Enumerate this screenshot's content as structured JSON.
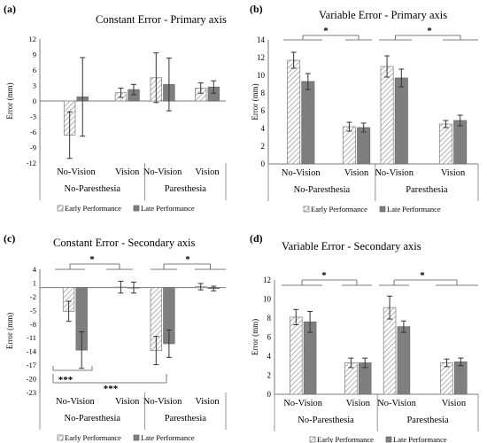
{
  "panels": [
    {
      "letter": "(a)",
      "title": "Constant Error - Primary axis",
      "ylabel": "Error (mm)",
      "ylim": [
        -12,
        12
      ],
      "yticks": [
        12,
        9,
        6,
        3,
        0,
        -3,
        -6,
        -9,
        -12
      ],
      "groups": [
        "No-Vision",
        "Vision",
        "No-Vision",
        "Vision"
      ],
      "outer_groups": [
        "No-Paresthesia",
        "Paresthesia"
      ],
      "legend": [
        "Early Performance",
        "Late Performance"
      ],
      "significance": []
    },
    {
      "letter": "(b)",
      "title": "Variable Error - Primary axis",
      "ylabel": "Error (mm)",
      "ylim": [
        0,
        14
      ],
      "yticks": [
        14,
        12,
        10,
        8,
        6,
        4,
        2,
        0
      ],
      "groups": [
        "No-Vision",
        "Vision",
        "No-Vision",
        "Vision"
      ],
      "outer_groups": [
        "No-Paresthesia",
        "Paresthesia"
      ],
      "legend": [
        "Early Performance",
        "Late Performance"
      ],
      "significance": [
        "*",
        "*"
      ]
    },
    {
      "letter": "(c)",
      "title": "Constant Error - Secondary axis",
      "ylabel": "Error (mm)",
      "ylim": [
        -23,
        4
      ],
      "yticks": [
        4,
        1,
        -2,
        -5,
        -8,
        -11,
        -14,
        -17,
        -20,
        -23
      ],
      "groups": [
        "No-Vision",
        "Vision",
        "No-Vision",
        "Vision"
      ],
      "outer_groups": [
        "No-Paresthesia",
        "Paresthesia"
      ],
      "legend": [
        "Early Performance",
        "Late Performance"
      ],
      "significance": [
        "*",
        "*",
        "***",
        "***"
      ]
    },
    {
      "letter": "(d)",
      "title": "Variable Error - Secondary axis",
      "ylabel": "Error (mm)",
      "ylim": [
        0,
        12
      ],
      "yticks": [
        12,
        10,
        8,
        6,
        4,
        2,
        0
      ],
      "groups": [
        "No-Vision",
        "Vision",
        "No-Vision",
        "Vision"
      ],
      "outer_groups": [
        "No-Paresthesia",
        "Paresthesia"
      ],
      "legend": [
        "Early Performance",
        "Late Performance"
      ],
      "significance": [
        "*",
        "*"
      ]
    }
  ],
  "chart_data": [
    {
      "type": "bar",
      "title": "Constant Error - Primary axis",
      "xlabel": "",
      "ylabel": "Error (mm)",
      "ylim": [
        -12,
        12
      ],
      "categories": [
        "No-Paresthesia No-Vision",
        "No-Paresthesia Vision",
        "Paresthesia No-Vision",
        "Paresthesia Vision"
      ],
      "series": [
        {
          "name": "Early Performance",
          "values": [
            -6.6,
            1.6,
            4.5,
            2.5
          ],
          "errors": [
            4.5,
            0.9,
            4.8,
            1.0
          ]
        },
        {
          "name": "Late Performance",
          "values": [
            0.8,
            2.2,
            3.2,
            2.7
          ],
          "errors": [
            7.6,
            1.0,
            5.1,
            1.2
          ]
        }
      ],
      "grid": false,
      "legend_position": "bottom"
    },
    {
      "type": "bar",
      "title": "Variable Error - Primary axis",
      "xlabel": "",
      "ylabel": "Error (mm)",
      "ylim": [
        0,
        14
      ],
      "categories": [
        "No-Paresthesia No-Vision",
        "No-Paresthesia Vision",
        "Paresthesia No-Vision",
        "Paresthesia Vision"
      ],
      "series": [
        {
          "name": "Early Performance",
          "values": [
            11.7,
            4.2,
            11.0,
            4.5
          ],
          "errors": [
            0.9,
            0.5,
            1.2,
            0.4
          ]
        },
        {
          "name": "Late Performance",
          "values": [
            9.3,
            4.1,
            9.7,
            4.9
          ],
          "errors": [
            0.9,
            0.5,
            1.0,
            0.6
          ]
        }
      ],
      "grid": false,
      "legend_position": "bottom"
    },
    {
      "type": "bar",
      "title": "Constant Error - Secondary axis",
      "xlabel": "",
      "ylabel": "Error (mm)",
      "ylim": [
        -23,
        4
      ],
      "categories": [
        "No-Paresthesia No-Vision",
        "No-Paresthesia Vision",
        "Paresthesia No-Vision",
        "Paresthesia Vision"
      ],
      "series": [
        {
          "name": "Early Performance",
          "values": [
            -5.2,
            0.1,
            -13.8,
            0.2
          ],
          "errors": [
            2.2,
            1.3,
            3.1,
            0.7
          ]
        },
        {
          "name": "Late Performance",
          "values": [
            -13.7,
            0.0,
            -12.3,
            -0.2
          ],
          "errors": [
            4.0,
            1.2,
            3.0,
            0.5
          ]
        }
      ],
      "grid": false,
      "legend_position": "bottom"
    },
    {
      "type": "bar",
      "title": "Variable Error - Secondary axis",
      "xlabel": "",
      "ylabel": "Error (mm)",
      "ylim": [
        0,
        12
      ],
      "categories": [
        "No-Paresthesia No-Vision",
        "No-Paresthesia Vision",
        "Paresthesia No-Vision",
        "Paresthesia Vision"
      ],
      "series": [
        {
          "name": "Early Performance",
          "values": [
            8.1,
            3.3,
            9.1,
            3.3
          ],
          "errors": [
            0.8,
            0.5,
            1.2,
            0.4
          ]
        },
        {
          "name": "Late Performance",
          "values": [
            7.6,
            3.3,
            7.1,
            3.4
          ],
          "errors": [
            1.1,
            0.5,
            0.6,
            0.4
          ]
        }
      ],
      "grid": false,
      "legend_position": "bottom"
    }
  ]
}
